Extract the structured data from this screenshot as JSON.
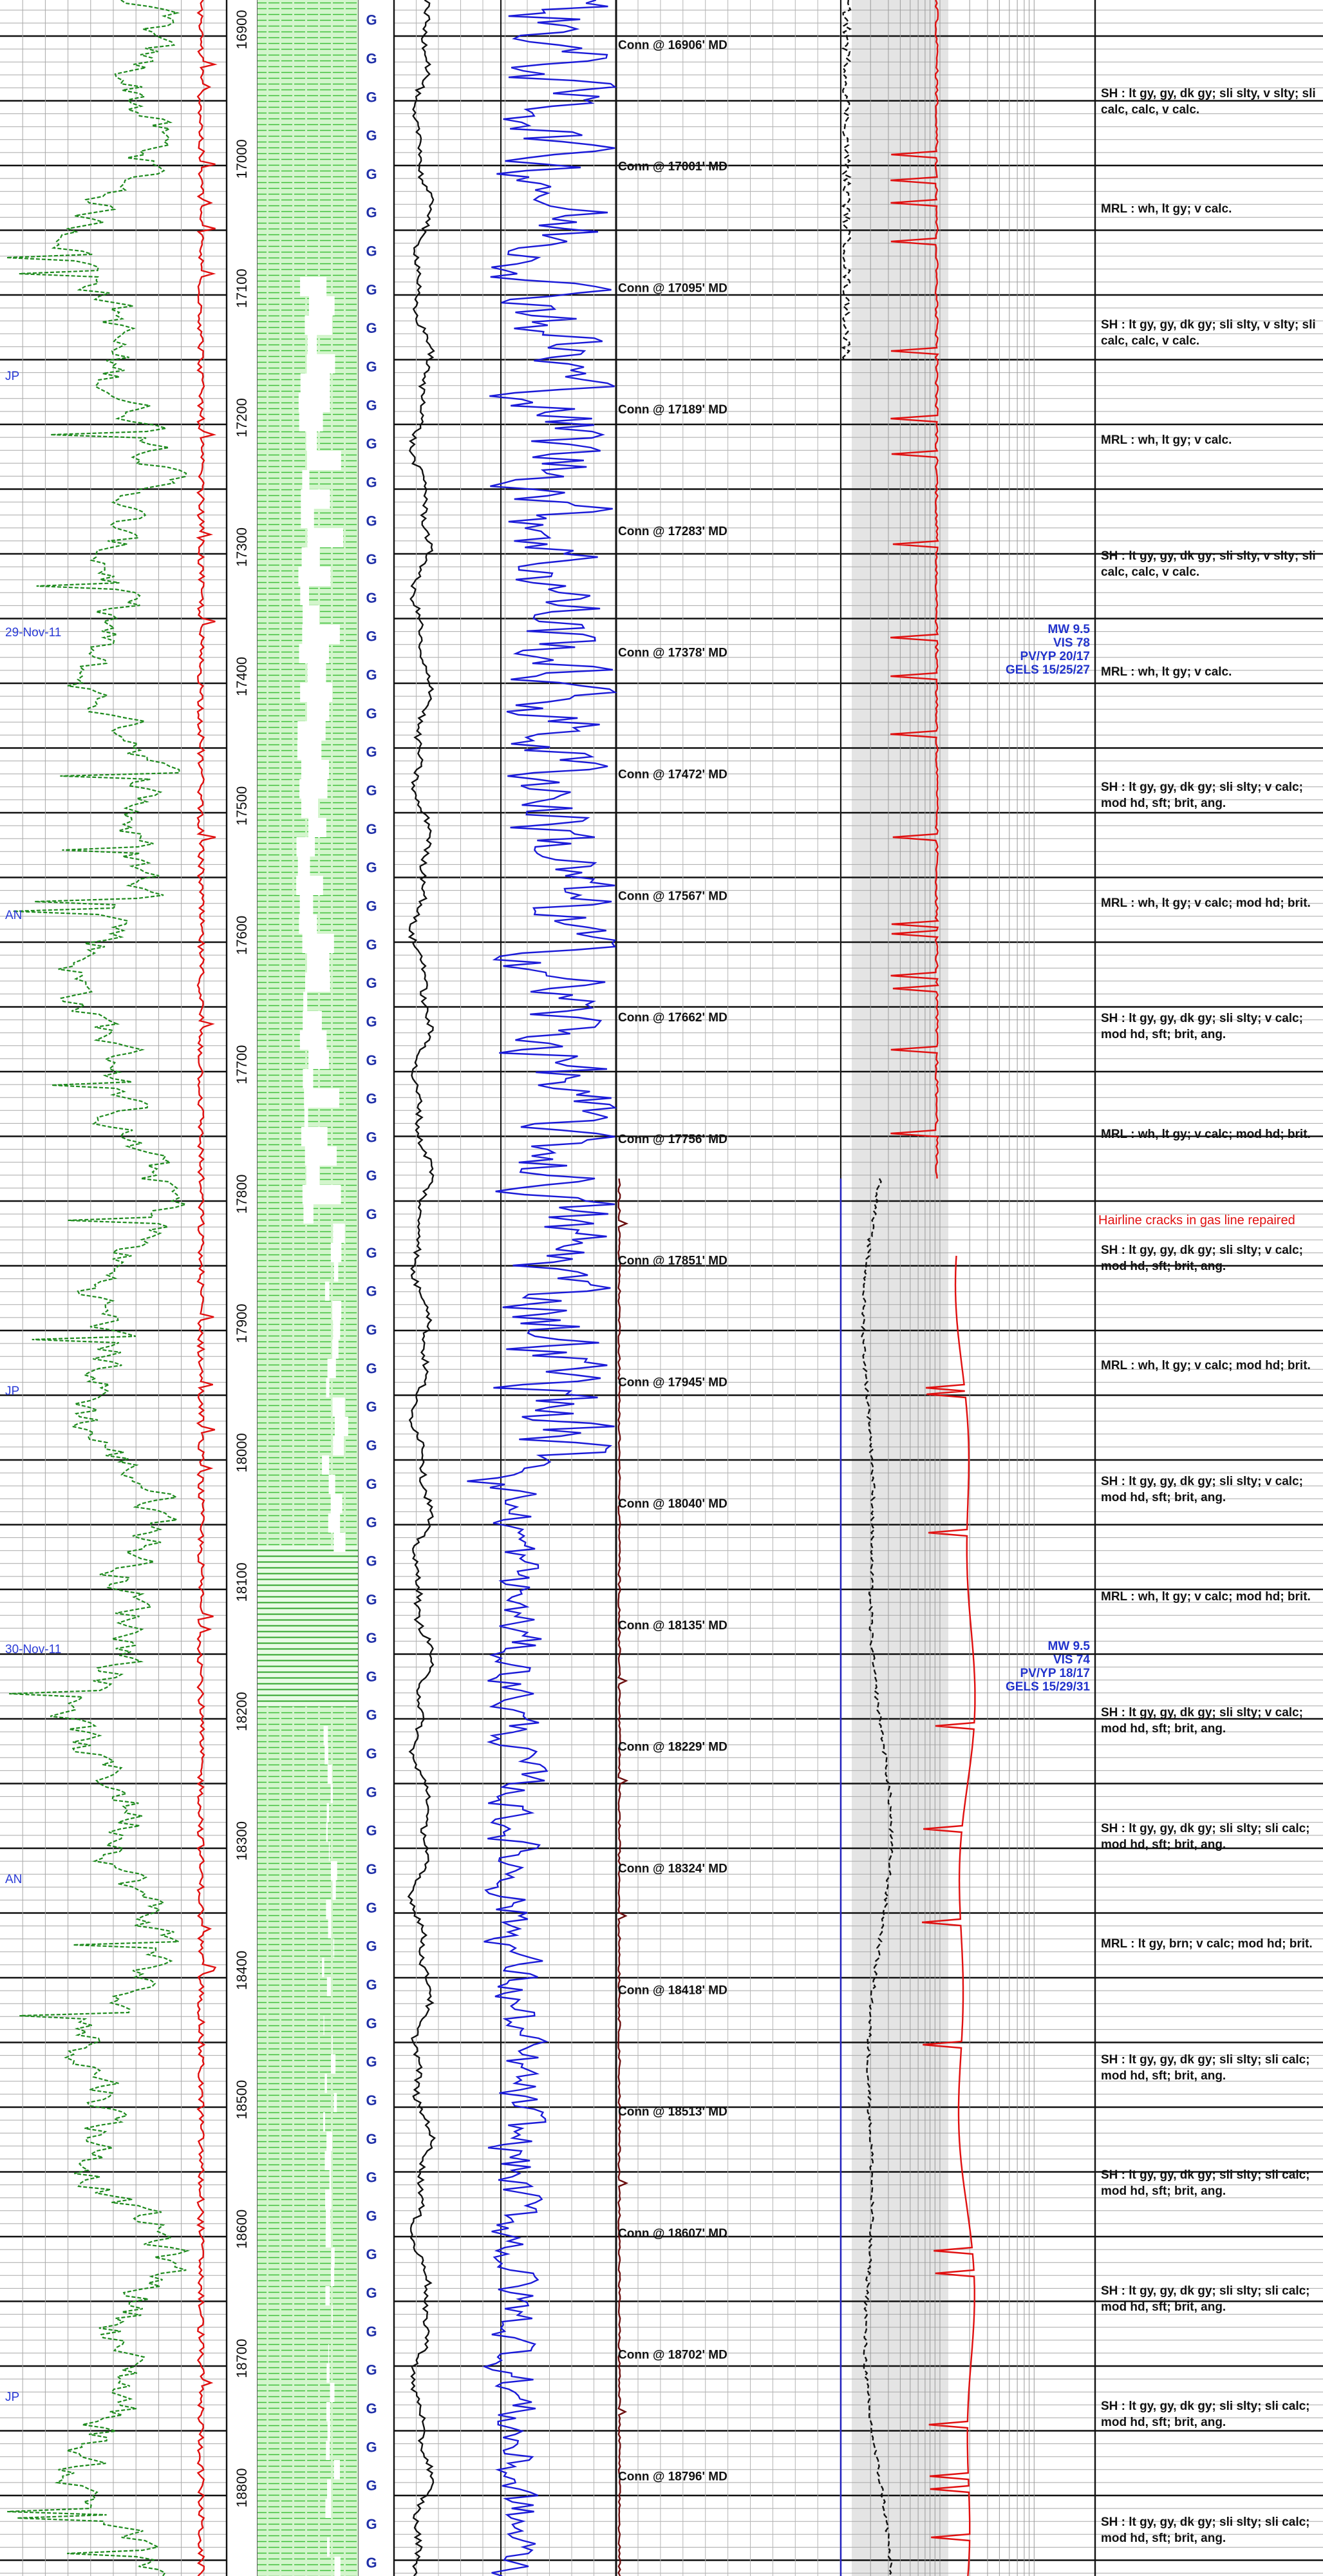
{
  "depth_track": {
    "ticks": [
      16900,
      17000,
      17100,
      17200,
      17300,
      17400,
      17500,
      17600,
      17700,
      17800,
      17900,
      18000,
      18100,
      18200,
      18300,
      18400,
      18500,
      18600,
      18700,
      18800
    ]
  },
  "gas_marker": "G",
  "connections": [
    "Conn @ 16906' MD",
    "Conn @ 17001' MD",
    "Conn @ 17095' MD",
    "Conn @ 17189' MD",
    "Conn @ 17283' MD",
    "Conn @ 17378' MD",
    "Conn @ 17472' MD",
    "Conn @ 17567' MD",
    "Conn @ 17662' MD",
    "Conn @ 17756' MD",
    "Conn @ 17851' MD",
    "Conn @ 17945' MD",
    "Conn @ 18040' MD",
    "Conn @ 18135' MD",
    "Conn @ 18229' MD",
    "Conn @ 18324' MD",
    "Conn @ 18418' MD",
    "Conn @ 18513' MD",
    "Conn @ 18607' MD",
    "Conn @ 18702' MD",
    "Conn @ 18796' MD"
  ],
  "lithology_descriptions": [
    "SH : lt gy, gy, dk gy;  sli slty, v slty;  sli calc, calc, v calc.",
    "MRL : wh, lt gy;  v calc.",
    "SH : lt gy, gy, dk gy;  sli slty, v slty;  sli calc, calc, v calc.",
    "MRL : wh, lt gy;  v calc.",
    "SH : lt gy, gy, dk gy;  sli slty, v slty;  sli calc, calc, v calc.",
    "MRL : wh, lt gy;  v calc.",
    "SH : lt gy, gy, dk gy;  sli slty;  v calc;  mod hd, sft;  brit, ang.",
    "MRL : wh, lt gy;  v calc;  mod hd;  brit.",
    "SH : lt gy, gy, dk gy;  sli slty;  v calc;  mod hd, sft;  brit, ang.",
    "MRL : wh, lt gy;  v calc;  mod hd;  brit.",
    "SH : lt gy, gy, dk gy;  sli slty;  v calc;  mod hd, sft;  brit, ang.",
    "MRL : wh, lt gy;  v calc;  mod hd;  brit.",
    "SH : lt gy, gy, dk gy;  sli slty;  v calc;  mod hd, sft;  brit, ang.",
    "MRL : wh, lt gy;  v calc;  mod hd;  brit.",
    "SH : lt gy, gy, dk gy;  sli slty;  v calc;  mod hd, sft;  brit, ang.",
    "SH : lt gy, gy, dk gy;  sli slty;  sli calc;  mod hd, sft;  brit, ang.",
    "MRL : lt gy, brn;  v calc;  mod hd;  brit.",
    "SH : lt gy, gy, dk gy;  sli slty;  sli calc;  mod hd, sft;  brit, ang.",
    "SH : lt gy, gy, dk gy;  sli slty;  sli calc;  mod hd, sft;  brit, ang.",
    "SH : lt gy, gy, dk gy;  sli slty;  sli calc;  mod hd, sft;  brit, ang.",
    "SH : lt gy, gy, dk gy;  sli slty;  sli calc;  mod hd, sft;  brit, ang.",
    "SH : lt gy, gy, dk gy;  sli slty;  sli calc;  mod hd, sft;  brit, ang."
  ],
  "mud_reports": [
    {
      "lines": [
        "MW 9.5",
        "VIS 78",
        "PV/YP 20/17",
        "GELS 15/25/27"
      ]
    },
    {
      "lines": [
        "MW 9.5",
        "VIS 74",
        "PV/YP 18/17",
        "GELS 15/29/31"
      ]
    }
  ],
  "annotations": [
    "JP",
    "29-Nov-11",
    "AN",
    "JP",
    "30-Nov-11",
    "AN",
    "JP"
  ],
  "remark": "Hairline cracks in gas line repaired"
}
